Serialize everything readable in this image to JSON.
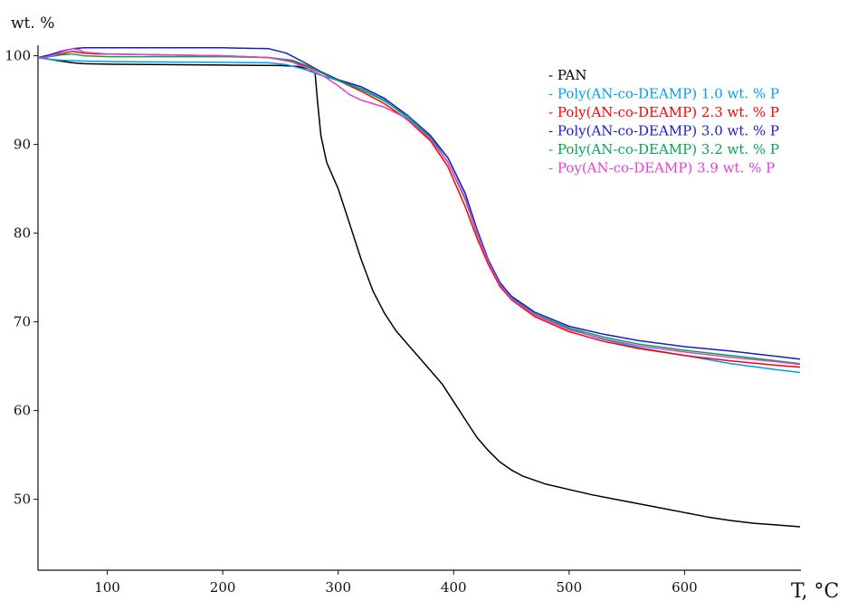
{
  "chart_data": {
    "type": "line",
    "ylabel": "wt. %",
    "xlabel": "T, °C",
    "xlim": [
      40,
      700
    ],
    "ylim": [
      42,
      102
    ],
    "x_ticks": [
      100,
      200,
      300,
      400,
      500,
      600
    ],
    "y_ticks": [
      50,
      60,
      70,
      80,
      90,
      100
    ],
    "grid": false,
    "legend_position": "top-right",
    "series": [
      {
        "name": "PAN",
        "color": "#000000",
        "points": [
          [
            40,
            99.8
          ],
          [
            50,
            99.6
          ],
          [
            60,
            99.4
          ],
          [
            70,
            99.2
          ],
          [
            80,
            99.1
          ],
          [
            100,
            99.05
          ],
          [
            150,
            99
          ],
          [
            200,
            98.95
          ],
          [
            250,
            98.9
          ],
          [
            265,
            98.8
          ],
          [
            275,
            98.5
          ],
          [
            280,
            98
          ],
          [
            282,
            95
          ],
          [
            285,
            91
          ],
          [
            290,
            88
          ],
          [
            300,
            85
          ],
          [
            310,
            81
          ],
          [
            320,
            77
          ],
          [
            330,
            73.5
          ],
          [
            340,
            71
          ],
          [
            350,
            69
          ],
          [
            360,
            67.5
          ],
          [
            370,
            66
          ],
          [
            380,
            64.5
          ],
          [
            390,
            63
          ],
          [
            400,
            61
          ],
          [
            410,
            59
          ],
          [
            420,
            57
          ],
          [
            430,
            55.5
          ],
          [
            440,
            54.2
          ],
          [
            450,
            53.3
          ],
          [
            460,
            52.6
          ],
          [
            480,
            51.7
          ],
          [
            500,
            51.1
          ],
          [
            520,
            50.5
          ],
          [
            540,
            50
          ],
          [
            560,
            49.5
          ],
          [
            580,
            49
          ],
          [
            600,
            48.5
          ],
          [
            620,
            48
          ],
          [
            640,
            47.6
          ],
          [
            660,
            47.3
          ],
          [
            680,
            47.1
          ],
          [
            700,
            46.9
          ]
        ]
      },
      {
        "name": "Poly(AN-co-DEAMP) 1.0 wt. % P",
        "color": "#00a0e8",
        "points": [
          [
            40,
            99.8
          ],
          [
            50,
            99.6
          ],
          [
            60,
            99.5
          ],
          [
            80,
            99.4
          ],
          [
            100,
            99.35
          ],
          [
            150,
            99.3
          ],
          [
            200,
            99.25
          ],
          [
            240,
            99.2
          ],
          [
            255,
            99
          ],
          [
            270,
            98.5
          ],
          [
            285,
            97.8
          ],
          [
            300,
            97.2
          ],
          [
            320,
            96.3
          ],
          [
            340,
            95
          ],
          [
            360,
            93
          ],
          [
            380,
            90.8
          ],
          [
            395,
            88.5
          ],
          [
            410,
            84.5
          ],
          [
            420,
            80.5
          ],
          [
            430,
            77
          ],
          [
            440,
            74.5
          ],
          [
            450,
            72.8
          ],
          [
            470,
            70.9
          ],
          [
            500,
            69.2
          ],
          [
            530,
            68
          ],
          [
            560,
            67.1
          ],
          [
            600,
            66.2
          ],
          [
            640,
            65.3
          ],
          [
            680,
            64.6
          ],
          [
            700,
            64.3
          ]
        ]
      },
      {
        "name": "Poly(AN-co-DEAMP) 2.3 wt. % P",
        "color": "#ff0000",
        "points": [
          [
            40,
            99.7
          ],
          [
            50,
            99.9
          ],
          [
            60,
            100.2
          ],
          [
            70,
            100.5
          ],
          [
            80,
            100.3
          ],
          [
            90,
            100.2
          ],
          [
            150,
            100.1
          ],
          [
            200,
            100
          ],
          [
            240,
            99.8
          ],
          [
            260,
            99.4
          ],
          [
            275,
            98.7
          ],
          [
            290,
            97.8
          ],
          [
            300,
            97.2
          ],
          [
            320,
            96
          ],
          [
            340,
            94.6
          ],
          [
            360,
            92.8
          ],
          [
            380,
            90.4
          ],
          [
            395,
            87.5
          ],
          [
            410,
            83
          ],
          [
            420,
            79.5
          ],
          [
            430,
            76.5
          ],
          [
            440,
            74
          ],
          [
            450,
            72.5
          ],
          [
            470,
            70.6
          ],
          [
            500,
            68.9
          ],
          [
            530,
            67.8
          ],
          [
            560,
            67
          ],
          [
            600,
            66.2
          ],
          [
            640,
            65.6
          ],
          [
            680,
            65.1
          ],
          [
            700,
            64.9
          ]
        ]
      },
      {
        "name": "Poly(AN-co-DEAMP) 3.0 wt. % P",
        "color": "#1a1acc",
        "points": [
          [
            40,
            99.8
          ],
          [
            50,
            100.1
          ],
          [
            60,
            100.5
          ],
          [
            70,
            100.8
          ],
          [
            80,
            100.9
          ],
          [
            100,
            100.9
          ],
          [
            150,
            100.9
          ],
          [
            200,
            100.9
          ],
          [
            240,
            100.8
          ],
          [
            255,
            100.3
          ],
          [
            270,
            99.3
          ],
          [
            285,
            98.2
          ],
          [
            300,
            97.3
          ],
          [
            320,
            96.5
          ],
          [
            340,
            95.2
          ],
          [
            360,
            93.3
          ],
          [
            380,
            91
          ],
          [
            395,
            88.5
          ],
          [
            410,
            84.5
          ],
          [
            420,
            80.5
          ],
          [
            430,
            77
          ],
          [
            440,
            74.4
          ],
          [
            450,
            72.9
          ],
          [
            470,
            71.1
          ],
          [
            500,
            69.5
          ],
          [
            530,
            68.6
          ],
          [
            560,
            67.9
          ],
          [
            600,
            67.2
          ],
          [
            640,
            66.7
          ],
          [
            680,
            66.1
          ],
          [
            700,
            65.8
          ]
        ]
      },
      {
        "name": "Poly(AN-co-DEAMP) 3.2 wt. % P",
        "color": "#00a850",
        "points": [
          [
            40,
            99.8
          ],
          [
            50,
            99.9
          ],
          [
            60,
            100.1
          ],
          [
            70,
            100.2
          ],
          [
            80,
            100
          ],
          [
            100,
            99.9
          ],
          [
            150,
            99.9
          ],
          [
            200,
            99.9
          ],
          [
            240,
            99.8
          ],
          [
            260,
            99.5
          ],
          [
            275,
            98.8
          ],
          [
            290,
            97.8
          ],
          [
            300,
            97.2
          ],
          [
            320,
            96.2
          ],
          [
            340,
            94.9
          ],
          [
            360,
            93.2
          ],
          [
            380,
            90.8
          ],
          [
            395,
            88
          ],
          [
            410,
            83.8
          ],
          [
            420,
            80
          ],
          [
            430,
            76.8
          ],
          [
            440,
            74.2
          ],
          [
            450,
            72.7
          ],
          [
            470,
            70.9
          ],
          [
            500,
            69.3
          ],
          [
            530,
            68.3
          ],
          [
            560,
            67.5
          ],
          [
            600,
            66.8
          ],
          [
            640,
            66.2
          ],
          [
            680,
            65.6
          ],
          [
            700,
            65.3
          ]
        ]
      },
      {
        "name": "Poy(AN-co-DEAMP) 3.9 wt. % P",
        "color": "#e040d0",
        "points": [
          [
            40,
            99.7
          ],
          [
            50,
            99.9
          ],
          [
            60,
            100.4
          ],
          [
            70,
            100.8
          ],
          [
            75,
            100.7
          ],
          [
            80,
            100.4
          ],
          [
            100,
            100.2
          ],
          [
            150,
            100.1
          ],
          [
            200,
            100
          ],
          [
            240,
            99.8
          ],
          [
            260,
            99.3
          ],
          [
            275,
            98.5
          ],
          [
            290,
            97.5
          ],
          [
            300,
            96.6
          ],
          [
            310,
            95.6
          ],
          [
            320,
            95
          ],
          [
            340,
            94.2
          ],
          [
            360,
            92.9
          ],
          [
            380,
            90.6
          ],
          [
            395,
            88
          ],
          [
            410,
            84
          ],
          [
            420,
            80.2
          ],
          [
            430,
            76.8
          ],
          [
            440,
            74.2
          ],
          [
            450,
            72.6
          ],
          [
            470,
            70.8
          ],
          [
            500,
            69.1
          ],
          [
            530,
            68.1
          ],
          [
            560,
            67.3
          ],
          [
            600,
            66.6
          ],
          [
            640,
            66
          ],
          [
            680,
            65.5
          ],
          [
            700,
            65.2
          ]
        ]
      }
    ]
  }
}
